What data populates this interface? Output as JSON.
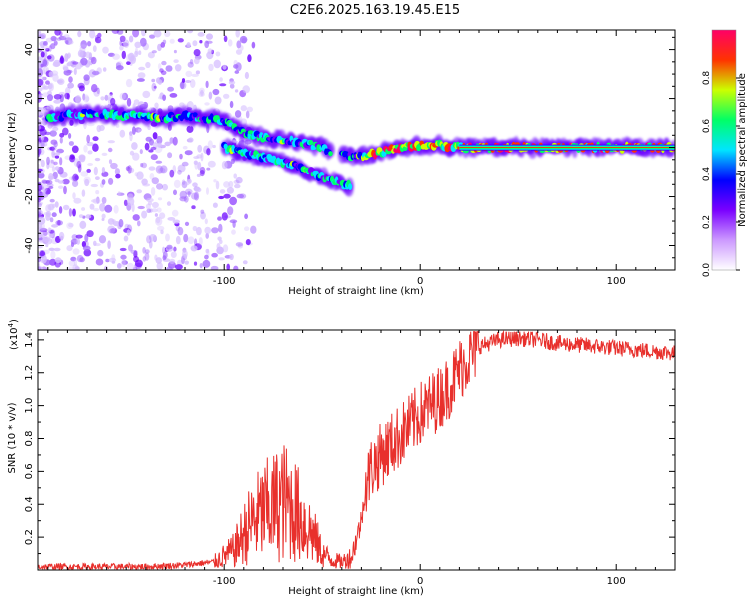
{
  "title": "C2E6.2025.163.19.45.E15",
  "chart_data": [
    {
      "type": "heatmap",
      "xlabel": "Height of straight line (km)",
      "ylabel": "Frequency (Hz)",
      "xlim": [
        -195,
        130
      ],
      "ylim": [
        -50,
        48
      ],
      "x_ticks": [
        -100,
        0,
        100
      ],
      "y_ticks": [
        -40,
        -20,
        0,
        20,
        40
      ],
      "colorbar": {
        "label": "Normalized spectral amplitude",
        "range": [
          0,
          1
        ],
        "ticks": [
          "0.0",
          "0.2",
          "0.4",
          "0.6",
          "0.8"
        ],
        "colors": [
          "#ffffff",
          "#cc99ff",
          "#7a00ff",
          "#0000ff",
          "#00e5ff",
          "#00ff66",
          "#ccff00",
          "#ff3300",
          "#ff0066"
        ]
      },
      "ridges": [
        {
          "x": [
            -190,
            -170,
            -150,
            -130,
            -120,
            -110,
            -100,
            -90,
            -80,
            -70,
            -60,
            -50,
            -45
          ],
          "y": [
            12,
            14,
            13,
            12,
            13,
            12,
            11,
            6,
            4,
            3,
            2,
            0,
            -2
          ]
        },
        {
          "x": [
            -100,
            -90,
            -80,
            -70,
            -60,
            -50,
            -40,
            -35
          ],
          "y": [
            0,
            -2,
            -4,
            -6,
            -9,
            -12,
            -15,
            -16
          ]
        },
        {
          "x": [
            -40,
            -30,
            -20,
            -10,
            0,
            10,
            20,
            130
          ],
          "y": [
            -3,
            -4,
            -2,
            0,
            1,
            1,
            0,
            0
          ]
        }
      ],
      "constant_line": {
        "x": [
          20,
          130
        ],
        "y": 0
      }
    },
    {
      "type": "line",
      "xlabel": "Height of straight line (km)",
      "ylabel": "SNR (10 * v/v)",
      "y_multiplier": "(x10",
      "y_multiplier_exp": "4",
      "xlim": [
        -195,
        130
      ],
      "ylim": [
        0,
        1.46
      ],
      "x_ticks": [
        -100,
        0,
        100
      ],
      "y_ticks": [
        0.2,
        0.4,
        0.6,
        0.8,
        1.0,
        1.2,
        1.4
      ],
      "y_tick_labels": [
        "0.2",
        "0.4",
        "0.6",
        "0.8",
        "1.0",
        "1.2",
        "1.4"
      ],
      "color": "#e8302c",
      "series": {
        "x": [
          -195,
          -180,
          -160,
          -140,
          -120,
          -105,
          -95,
          -90,
          -85,
          -80,
          -75,
          -70,
          -65,
          -60,
          -55,
          -50,
          -45,
          -40,
          -35,
          -30,
          -28,
          -25,
          -20,
          -15,
          -10,
          -5,
          0,
          5,
          10,
          15,
          20,
          25,
          30,
          40,
          50,
          60,
          70,
          80,
          90,
          100,
          110,
          120,
          130
        ],
        "y": [
          0.02,
          0.02,
          0.02,
          0.02,
          0.03,
          0.05,
          0.12,
          0.22,
          0.3,
          0.35,
          0.38,
          0.42,
          0.38,
          0.3,
          0.22,
          0.1,
          0.06,
          0.05,
          0.08,
          0.3,
          0.5,
          0.62,
          0.7,
          0.76,
          0.82,
          0.88,
          0.95,
          1.0,
          1.05,
          1.12,
          1.22,
          1.3,
          1.36,
          1.4,
          1.41,
          1.4,
          1.38,
          1.37,
          1.36,
          1.35,
          1.34,
          1.33,
          1.32
        ]
      }
    }
  ]
}
